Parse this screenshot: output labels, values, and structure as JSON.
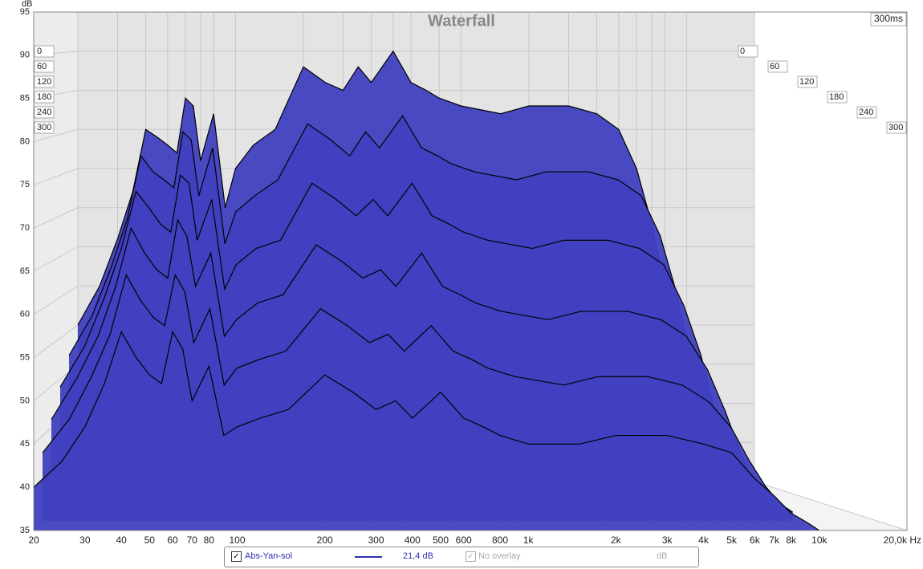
{
  "chart_data": {
    "type": "waterfall",
    "title": "Waterfall",
    "y_label": "dB",
    "time_range_label": "300ms",
    "x": [
      20,
      25,
      30,
      35,
      40,
      45,
      50,
      55,
      60,
      65,
      70,
      80,
      90,
      100,
      120,
      150,
      200,
      250,
      300,
      350,
      400,
      500,
      600,
      700,
      800,
      1000,
      1500,
      2000,
      3000,
      4000,
      5000,
      6000,
      7000,
      8000,
      9000,
      10000
    ],
    "series": [
      {
        "name": "0",
        "color": "#4040c0",
        "values": [
          55,
          60,
          66,
          72,
          80,
          79,
          78,
          77,
          84,
          83,
          76,
          82,
          70,
          75,
          78,
          80,
          88,
          86,
          85,
          88,
          86,
          90,
          86,
          85,
          84,
          83,
          82,
          83,
          83,
          82,
          80,
          75,
          68,
          60,
          50,
          42
        ]
      },
      {
        "name": "60",
        "color": "#4040c0",
        "values": [
          52,
          57,
          63,
          69,
          77,
          75,
          74,
          73,
          80,
          79,
          72,
          78,
          66,
          70,
          72,
          74,
          81,
          79,
          77,
          80,
          78,
          82,
          78,
          77,
          76,
          75,
          74,
          75,
          75,
          74,
          72,
          67,
          60,
          52,
          44,
          38
        ]
      },
      {
        "name": "120",
        "color": "#4040c0",
        "values": [
          49,
          54,
          60,
          66,
          73,
          71,
          69,
          68,
          75,
          74,
          67,
          72,
          61,
          64,
          66,
          67,
          74,
          72,
          70,
          72,
          70,
          74,
          70,
          69,
          68,
          67,
          66,
          67,
          67,
          66,
          64,
          59,
          53,
          46,
          40,
          36
        ]
      },
      {
        "name": "180",
        "color": "#4040c0",
        "values": [
          46,
          51,
          56,
          62,
          69,
          66,
          64,
          63,
          70,
          68,
          62,
          66,
          56,
          58,
          60,
          61,
          67,
          65,
          63,
          64,
          62,
          66,
          62,
          61,
          60,
          59,
          58,
          59,
          59,
          58,
          56,
          52,
          47,
          42,
          38,
          36
        ]
      },
      {
        "name": "240",
        "color": "#4040c0",
        "values": [
          43,
          47,
          52,
          57,
          64,
          61,
          59,
          58,
          64,
          62,
          56,
          60,
          51,
          53,
          54,
          55,
          60,
          58,
          56,
          57,
          55,
          58,
          55,
          54,
          53,
          52,
          51,
          52,
          52,
          51,
          49,
          46,
          42,
          39,
          37,
          36
        ]
      },
      {
        "name": "300",
        "color": "#4040c0",
        "values": [
          40,
          43,
          47,
          52,
          58,
          55,
          53,
          52,
          58,
          56,
          50,
          54,
          46,
          47,
          48,
          49,
          53,
          51,
          49,
          50,
          48,
          51,
          48,
          47,
          46,
          45,
          45,
          46,
          46,
          45,
          44,
          41,
          39,
          37,
          36,
          35
        ]
      }
    ],
    "xlim": [
      20,
      20000
    ],
    "log_x": true,
    "xticks": [
      20,
      30,
      40,
      50,
      60,
      70,
      80,
      100,
      200,
      300,
      400,
      500,
      600,
      800,
      {
        "value": 1000,
        "label": "1k"
      },
      {
        "value": 2000,
        "label": "2k"
      },
      {
        "value": 3000,
        "label": "3k"
      },
      {
        "value": 4000,
        "label": "4k"
      },
      {
        "value": 5000,
        "label": "5k"
      },
      {
        "value": 6000,
        "label": "6k"
      },
      {
        "value": 7000,
        "label": "7k"
      },
      {
        "value": 8000,
        "label": "8k"
      },
      {
        "value": 10000,
        "label": "10k"
      },
      {
        "value": 20000,
        "label": "20,0k Hz"
      }
    ],
    "ylim": [
      35,
      95
    ],
    "yticks": [
      35,
      40,
      45,
      50,
      55,
      60,
      65,
      70,
      75,
      80,
      85,
      90,
      95
    ],
    "grid": true
  },
  "trace": {
    "name": "Abs-Yan-sol",
    "level": "21,4 dB",
    "overlay": "No overlay",
    "unit": "dB"
  }
}
